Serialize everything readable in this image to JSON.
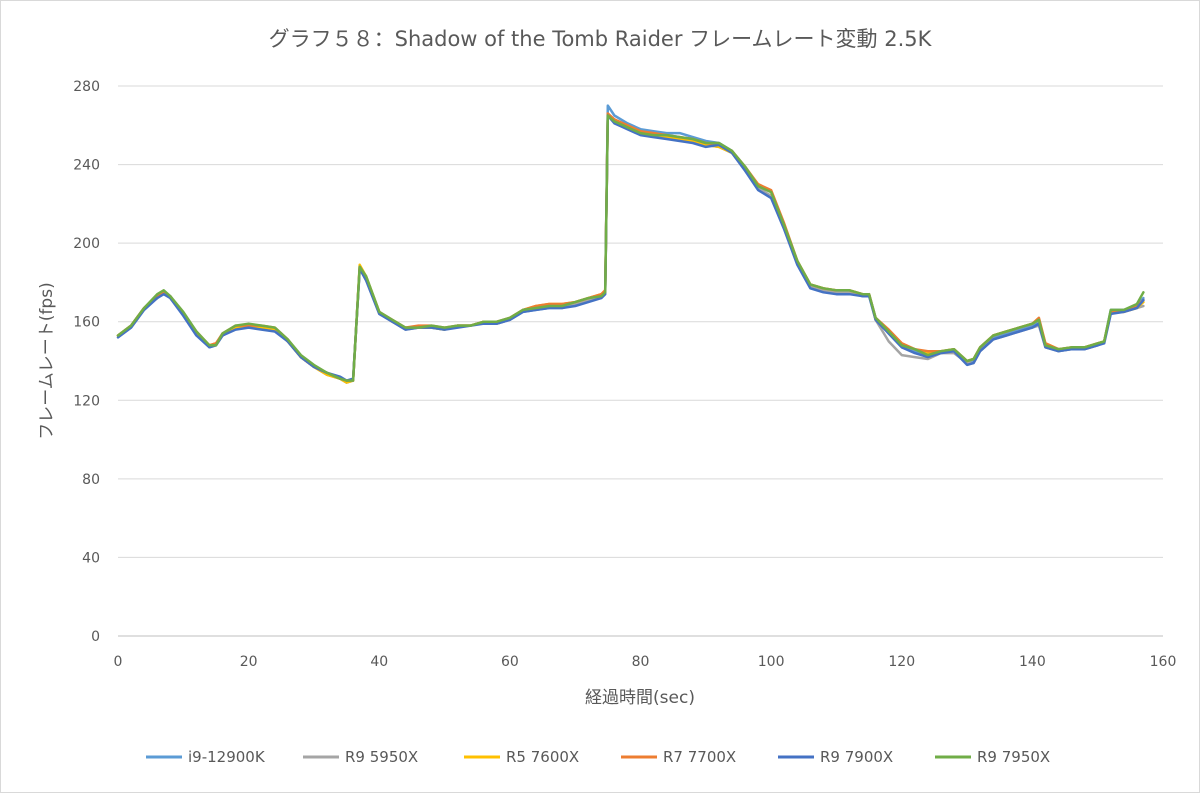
{
  "chart_data": {
    "type": "line",
    "title": "グラフ５８：Shadow of the Tomb Raider フレームレート変動 2.5K",
    "xlabel": "経過時間(sec)",
    "ylabel": "フレームレート(fps)",
    "xlim": [
      0,
      160
    ],
    "ylim": [
      0,
      280
    ],
    "xticks": [
      "0",
      "20",
      "40",
      "60",
      "80",
      "100",
      "120",
      "140",
      "160"
    ],
    "yticks": [
      "0",
      "40",
      "80",
      "120",
      "160",
      "200",
      "240",
      "280"
    ],
    "grid": "horizontal",
    "legend": "bottom",
    "x": [
      0,
      2,
      4,
      6,
      7,
      8,
      10,
      12,
      14,
      15,
      16,
      18,
      20,
      22,
      24,
      26,
      28,
      30,
      32,
      34,
      35,
      36,
      37,
      38,
      40,
      42,
      44,
      46,
      48,
      50,
      52,
      54,
      56,
      58,
      60,
      62,
      64,
      66,
      68,
      70,
      72,
      74,
      74.6,
      75,
      76,
      78,
      80,
      82,
      84,
      86,
      88,
      90,
      92,
      94,
      96,
      98,
      100,
      102,
      104,
      106,
      108,
      110,
      112,
      114,
      115,
      116,
      118,
      120,
      122,
      124,
      126,
      128,
      130,
      131,
      132,
      134,
      136,
      138,
      140,
      141,
      142,
      144,
      146,
      148,
      150,
      151,
      152,
      154,
      156,
      157
    ],
    "series": [
      {
        "name": "i9-12900K",
        "color": "#5b9bd5",
        "values": [
          153,
          158,
          167,
          173,
          175,
          173,
          164,
          154,
          147,
          148,
          153,
          157,
          158,
          157,
          156,
          150,
          142,
          137,
          134,
          131,
          129,
          130,
          188,
          183,
          165,
          160,
          157,
          157,
          157,
          156,
          158,
          158,
          160,
          159,
          161,
          165,
          166,
          167,
          167,
          169,
          171,
          173,
          175,
          270,
          265,
          261,
          258,
          257,
          256,
          256,
          254,
          252,
          251,
          247,
          238,
          228,
          224,
          208,
          190,
          178,
          176,
          175,
          175,
          173,
          174,
          162,
          154,
          147,
          145,
          143,
          144,
          145,
          139,
          140,
          146,
          152,
          154,
          156,
          158,
          160,
          148,
          145,
          146,
          146,
          148,
          150,
          166,
          166,
          168,
          172
        ]
      },
      {
        "name": "R9 5950X",
        "color": "#a5a5a5",
        "values": [
          153,
          158,
          167,
          172,
          175,
          172,
          164,
          154,
          148,
          149,
          153,
          157,
          158,
          157,
          156,
          150,
          142,
          137,
          133,
          131,
          129,
          130,
          187,
          181,
          164,
          160,
          156,
          157,
          157,
          156,
          158,
          158,
          160,
          159,
          161,
          166,
          167,
          168,
          168,
          169,
          171,
          173,
          175,
          266,
          263,
          259,
          256,
          255,
          254,
          254,
          252,
          250,
          249,
          246,
          237,
          228,
          224,
          208,
          190,
          178,
          176,
          175,
          175,
          173,
          174,
          161,
          150,
          143,
          142,
          141,
          144,
          144,
          139,
          139,
          145,
          151,
          153,
          155,
          157,
          158,
          147,
          145,
          146,
          146,
          148,
          150,
          165,
          166,
          167,
          168
        ]
      },
      {
        "name": "R5 7600X",
        "color": "#ffc000",
        "values": [
          153,
          158,
          167,
          172,
          175,
          172,
          164,
          154,
          148,
          149,
          153,
          157,
          157,
          157,
          156,
          150,
          142,
          137,
          133,
          131,
          129,
          130,
          189,
          183,
          165,
          160,
          157,
          157,
          157,
          156,
          158,
          158,
          160,
          159,
          162,
          166,
          168,
          169,
          169,
          170,
          172,
          174,
          176,
          265,
          262,
          259,
          256,
          255,
          254,
          253,
          252,
          250,
          249,
          246,
          238,
          230,
          226,
          209,
          191,
          179,
          177,
          176,
          176,
          174,
          174,
          161,
          155,
          148,
          146,
          144,
          145,
          146,
          140,
          141,
          147,
          153,
          155,
          157,
          159,
          161,
          149,
          146,
          147,
          147,
          149,
          150,
          165,
          165,
          167,
          170
        ]
      },
      {
        "name": "R7 7700X",
        "color": "#ed7d31",
        "values": [
          153,
          158,
          167,
          173,
          175,
          173,
          164,
          155,
          148,
          149,
          154,
          158,
          158,
          158,
          157,
          151,
          142,
          137,
          134,
          131,
          130,
          130,
          188,
          182,
          165,
          161,
          157,
          158,
          158,
          157,
          158,
          158,
          160,
          160,
          162,
          166,
          168,
          169,
          169,
          170,
          172,
          174,
          176,
          266,
          263,
          260,
          257,
          256,
          255,
          254,
          253,
          251,
          250,
          247,
          239,
          230,
          227,
          210,
          191,
          179,
          177,
          176,
          176,
          174,
          174,
          162,
          156,
          149,
          146,
          145,
          145,
          146,
          140,
          141,
          147,
          153,
          155,
          157,
          159,
          162,
          149,
          146,
          147,
          147,
          149,
          150,
          165,
          165,
          168,
          171
        ]
      },
      {
        "name": "R9 7900X",
        "color": "#4472c4",
        "values": [
          152,
          157,
          166,
          172,
          174,
          172,
          163,
          153,
          147,
          148,
          153,
          156,
          157,
          156,
          155,
          150,
          142,
          137,
          134,
          132,
          130,
          131,
          187,
          181,
          164,
          160,
          156,
          157,
          157,
          156,
          157,
          158,
          159,
          159,
          161,
          165,
          166,
          167,
          167,
          168,
          170,
          172,
          174,
          265,
          261,
          258,
          255,
          254,
          253,
          252,
          251,
          249,
          250,
          246,
          237,
          227,
          223,
          207,
          189,
          177,
          175,
          174,
          174,
          173,
          173,
          161,
          154,
          147,
          144,
          142,
          144,
          145,
          138,
          139,
          145,
          151,
          153,
          155,
          157,
          159,
          147,
          145,
          146,
          146,
          148,
          149,
          164,
          165,
          167,
          171
        ]
      },
      {
        "name": "R9 7950X",
        "color": "#70ad47",
        "values": [
          153,
          158,
          167,
          174,
          176,
          173,
          165,
          155,
          148,
          148,
          154,
          158,
          159,
          158,
          157,
          151,
          143,
          138,
          134,
          131,
          130,
          130,
          188,
          183,
          165,
          161,
          157,
          157,
          158,
          157,
          158,
          158,
          160,
          160,
          162,
          166,
          167,
          168,
          168,
          170,
          172,
          173,
          175,
          265,
          262,
          259,
          256,
          255,
          255,
          254,
          253,
          251,
          251,
          247,
          239,
          229,
          226,
          209,
          191,
          179,
          177,
          176,
          176,
          174,
          174,
          162,
          155,
          148,
          146,
          143,
          145,
          146,
          140,
          141,
          147,
          153,
          155,
          157,
          159,
          161,
          148,
          146,
          147,
          147,
          149,
          150,
          166,
          166,
          169,
          175
        ]
      }
    ]
  }
}
